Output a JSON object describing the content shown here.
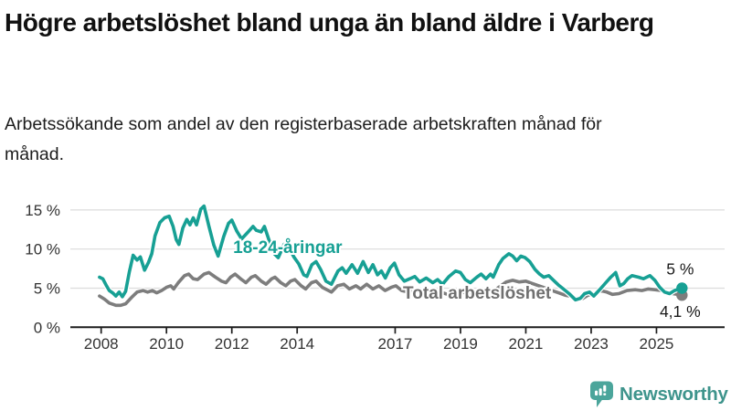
{
  "chart_data": {
    "type": "line",
    "title": "Högre arbetslöshet bland unga än bland äldre i Varberg",
    "subtitle": "Arbetssökande som andel av den registerbaserade arbetskraften månad för månad.",
    "x_axis": {
      "range": [
        2007.9,
        2026.0
      ],
      "ticks": [
        {
          "value": 2008,
          "label": "2008"
        },
        {
          "value": 2010,
          "label": "2010"
        },
        {
          "value": 2012,
          "label": "2012"
        },
        {
          "value": 2014,
          "label": "2014"
        },
        {
          "value": 2017,
          "label": "2017"
        },
        {
          "value": 2019,
          "label": "2019"
        },
        {
          "value": 2021,
          "label": "2021"
        },
        {
          "value": 2023,
          "label": "2023"
        },
        {
          "value": 2025,
          "label": "2025"
        }
      ]
    },
    "y_axis": {
      "range": [
        0,
        16.5
      ],
      "unit": "%",
      "ticks": [
        {
          "value": 15,
          "label": "15 %"
        },
        {
          "value": 10,
          "label": "10 %"
        },
        {
          "value": 5,
          "label": "5 %"
        },
        {
          "value": 0,
          "label": "0 %"
        }
      ]
    },
    "style": {
      "grid_color": "#dcdcdc",
      "axis_color": "#1d1d1d",
      "axis_text_color": "#333333",
      "grid_on": true
    },
    "series": [
      {
        "name": "Total arbetslöshet",
        "color": "#7d7d7d",
        "label_color": "#6f6f6f",
        "label_at": [
          2017.24,
          3.65
        ],
        "end_label": "4,1 %",
        "end_label_position": "below",
        "points": [
          [
            2007.95,
            4.0
          ],
          [
            2008.1,
            3.6
          ],
          [
            2008.25,
            3.1
          ],
          [
            2008.45,
            2.8
          ],
          [
            2008.6,
            2.8
          ],
          [
            2008.75,
            3.0
          ],
          [
            2008.95,
            3.9
          ],
          [
            2009.1,
            4.5
          ],
          [
            2009.28,
            4.7
          ],
          [
            2009.42,
            4.5
          ],
          [
            2009.57,
            4.7
          ],
          [
            2009.7,
            4.4
          ],
          [
            2009.85,
            4.7
          ],
          [
            2010.0,
            5.1
          ],
          [
            2010.13,
            5.3
          ],
          [
            2010.22,
            4.9
          ],
          [
            2010.36,
            5.7
          ],
          [
            2010.55,
            6.6
          ],
          [
            2010.68,
            6.8
          ],
          [
            2010.82,
            6.2
          ],
          [
            2010.95,
            6.1
          ],
          [
            2011.15,
            6.8
          ],
          [
            2011.3,
            7.0
          ],
          [
            2011.5,
            6.4
          ],
          [
            2011.68,
            5.9
          ],
          [
            2011.82,
            5.7
          ],
          [
            2011.96,
            6.4
          ],
          [
            2012.1,
            6.8
          ],
          [
            2012.3,
            6.1
          ],
          [
            2012.43,
            5.7
          ],
          [
            2012.6,
            6.4
          ],
          [
            2012.72,
            6.6
          ],
          [
            2012.9,
            5.9
          ],
          [
            2013.05,
            5.5
          ],
          [
            2013.22,
            6.2
          ],
          [
            2013.32,
            6.4
          ],
          [
            2013.5,
            5.7
          ],
          [
            2013.65,
            5.3
          ],
          [
            2013.8,
            5.9
          ],
          [
            2013.93,
            6.1
          ],
          [
            2014.12,
            5.3
          ],
          [
            2014.26,
            4.9
          ],
          [
            2014.44,
            5.7
          ],
          [
            2014.58,
            5.9
          ],
          [
            2014.77,
            5.1
          ],
          [
            2014.96,
            4.7
          ],
          [
            2015.05,
            4.5
          ],
          [
            2015.24,
            5.3
          ],
          [
            2015.43,
            5.5
          ],
          [
            2015.6,
            4.9
          ],
          [
            2015.8,
            5.3
          ],
          [
            2015.94,
            4.9
          ],
          [
            2016.13,
            5.5
          ],
          [
            2016.32,
            4.9
          ],
          [
            2016.5,
            5.3
          ],
          [
            2016.69,
            4.7
          ],
          [
            2016.88,
            5.1
          ],
          [
            2017.02,
            5.3
          ],
          [
            2017.2,
            4.7
          ],
          [
            2017.4,
            4.5
          ],
          [
            2017.6,
            4.8
          ],
          [
            2017.8,
            4.4
          ],
          [
            2018.0,
            4.6
          ],
          [
            2018.2,
            4.3
          ],
          [
            2018.4,
            4.5
          ],
          [
            2018.6,
            4.2
          ],
          [
            2018.8,
            4.5
          ],
          [
            2019.0,
            4.6
          ],
          [
            2019.2,
            4.3
          ],
          [
            2019.4,
            4.5
          ],
          [
            2019.6,
            4.7
          ],
          [
            2019.8,
            4.4
          ],
          [
            2020.0,
            4.6
          ],
          [
            2020.2,
            5.2
          ],
          [
            2020.4,
            5.8
          ],
          [
            2020.6,
            6.0
          ],
          [
            2020.8,
            5.8
          ],
          [
            2021.0,
            5.9
          ],
          [
            2021.2,
            5.6
          ],
          [
            2021.4,
            5.3
          ],
          [
            2021.6,
            5.0
          ],
          [
            2021.8,
            4.7
          ],
          [
            2022.0,
            4.4
          ],
          [
            2022.2,
            4.1
          ],
          [
            2022.45,
            3.9
          ],
          [
            2022.6,
            3.5
          ],
          [
            2022.75,
            3.7
          ],
          [
            2022.9,
            4.1
          ],
          [
            2023.1,
            4.3
          ],
          [
            2023.28,
            4.7
          ],
          [
            2023.48,
            4.5
          ],
          [
            2023.65,
            4.2
          ],
          [
            2023.85,
            4.3
          ],
          [
            2024.1,
            4.7
          ],
          [
            2024.35,
            4.8
          ],
          [
            2024.55,
            4.7
          ],
          [
            2024.75,
            4.9
          ],
          [
            2024.95,
            4.8
          ],
          [
            2025.15,
            4.7
          ],
          [
            2025.33,
            4.4
          ],
          [
            2025.5,
            4.3
          ],
          [
            2025.65,
            4.2
          ],
          [
            2025.78,
            4.1
          ]
        ]
      },
      {
        "name": "18-24-åringar",
        "color": "#17a094",
        "label_color": "#17a094",
        "label_at": [
          2012.04,
          9.5
        ],
        "end_label": "5 %",
        "end_label_position": "above",
        "points": [
          [
            2007.95,
            6.4
          ],
          [
            2008.05,
            6.2
          ],
          [
            2008.15,
            5.4
          ],
          [
            2008.25,
            4.7
          ],
          [
            2008.35,
            4.4
          ],
          [
            2008.45,
            4.0
          ],
          [
            2008.55,
            4.5
          ],
          [
            2008.65,
            3.9
          ],
          [
            2008.75,
            4.6
          ],
          [
            2008.86,
            7.0
          ],
          [
            2008.98,
            9.2
          ],
          [
            2009.1,
            8.6
          ],
          [
            2009.2,
            9.0
          ],
          [
            2009.33,
            7.3
          ],
          [
            2009.45,
            8.3
          ],
          [
            2009.55,
            9.4
          ],
          [
            2009.65,
            11.7
          ],
          [
            2009.8,
            13.4
          ],
          [
            2009.94,
            14.0
          ],
          [
            2010.08,
            14.2
          ],
          [
            2010.2,
            12.9
          ],
          [
            2010.3,
            11.2
          ],
          [
            2010.38,
            10.6
          ],
          [
            2010.5,
            12.7
          ],
          [
            2010.62,
            13.8
          ],
          [
            2010.72,
            13.1
          ],
          [
            2010.82,
            14.0
          ],
          [
            2010.92,
            13.1
          ],
          [
            2011.05,
            15.1
          ],
          [
            2011.15,
            15.5
          ],
          [
            2011.3,
            12.9
          ],
          [
            2011.45,
            10.5
          ],
          [
            2011.58,
            9.1
          ],
          [
            2011.75,
            11.6
          ],
          [
            2011.9,
            13.3
          ],
          [
            2012.0,
            13.7
          ],
          [
            2012.15,
            12.3
          ],
          [
            2012.3,
            11.3
          ],
          [
            2012.5,
            12.2
          ],
          [
            2012.65,
            12.9
          ],
          [
            2012.75,
            12.4
          ],
          [
            2012.9,
            12.2
          ],
          [
            2013.0,
            12.9
          ],
          [
            2013.15,
            11.0
          ],
          [
            2013.3,
            9.4
          ],
          [
            2013.42,
            8.9
          ],
          [
            2013.6,
            10.6
          ],
          [
            2013.75,
            10.2
          ],
          [
            2013.9,
            9.0
          ],
          [
            2014.05,
            8.1
          ],
          [
            2014.2,
            6.7
          ],
          [
            2014.3,
            6.5
          ],
          [
            2014.45,
            8.0
          ],
          [
            2014.58,
            8.4
          ],
          [
            2014.72,
            7.4
          ],
          [
            2014.88,
            5.9
          ],
          [
            2015.05,
            5.5
          ],
          [
            2015.25,
            7.2
          ],
          [
            2015.38,
            7.6
          ],
          [
            2015.5,
            6.9
          ],
          [
            2015.68,
            8.0
          ],
          [
            2015.85,
            6.9
          ],
          [
            2016.02,
            8.4
          ],
          [
            2016.18,
            7.0
          ],
          [
            2016.32,
            8.0
          ],
          [
            2016.46,
            6.7
          ],
          [
            2016.58,
            7.2
          ],
          [
            2016.7,
            6.3
          ],
          [
            2016.85,
            7.6
          ],
          [
            2016.98,
            8.2
          ],
          [
            2017.12,
            6.7
          ],
          [
            2017.28,
            5.9
          ],
          [
            2017.45,
            6.2
          ],
          [
            2017.6,
            6.5
          ],
          [
            2017.75,
            5.8
          ],
          [
            2017.95,
            6.3
          ],
          [
            2018.15,
            5.7
          ],
          [
            2018.3,
            6.1
          ],
          [
            2018.45,
            5.5
          ],
          [
            2018.65,
            6.5
          ],
          [
            2018.85,
            7.2
          ],
          [
            2019.0,
            7.0
          ],
          [
            2019.15,
            6.1
          ],
          [
            2019.3,
            5.7
          ],
          [
            2019.5,
            6.4
          ],
          [
            2019.63,
            6.8
          ],
          [
            2019.78,
            6.2
          ],
          [
            2019.92,
            6.8
          ],
          [
            2020.0,
            6.4
          ],
          [
            2020.17,
            8.0
          ],
          [
            2020.3,
            8.8
          ],
          [
            2020.48,
            9.4
          ],
          [
            2020.6,
            9.1
          ],
          [
            2020.72,
            8.5
          ],
          [
            2020.85,
            9.1
          ],
          [
            2020.98,
            8.9
          ],
          [
            2021.12,
            8.4
          ],
          [
            2021.28,
            7.4
          ],
          [
            2021.42,
            6.8
          ],
          [
            2021.55,
            6.4
          ],
          [
            2021.7,
            6.6
          ],
          [
            2021.85,
            6.0
          ],
          [
            2022.0,
            5.4
          ],
          [
            2022.15,
            4.9
          ],
          [
            2022.35,
            4.2
          ],
          [
            2022.52,
            3.5
          ],
          [
            2022.67,
            3.7
          ],
          [
            2022.8,
            4.3
          ],
          [
            2022.95,
            4.5
          ],
          [
            2023.08,
            4.0
          ],
          [
            2023.28,
            4.9
          ],
          [
            2023.45,
            5.7
          ],
          [
            2023.6,
            6.4
          ],
          [
            2023.75,
            7.0
          ],
          [
            2023.88,
            5.3
          ],
          [
            2024.0,
            5.6
          ],
          [
            2024.12,
            6.2
          ],
          [
            2024.25,
            6.6
          ],
          [
            2024.45,
            6.4
          ],
          [
            2024.6,
            6.2
          ],
          [
            2024.8,
            6.6
          ],
          [
            2024.95,
            6.0
          ],
          [
            2025.1,
            5.1
          ],
          [
            2025.25,
            4.5
          ],
          [
            2025.4,
            4.3
          ],
          [
            2025.55,
            4.7
          ],
          [
            2025.7,
            4.9
          ],
          [
            2025.78,
            5.0
          ]
        ]
      }
    ]
  },
  "footer": {
    "brand": "Newsworthy",
    "logo_color": "#4ba59b",
    "text_color": "#3e948c"
  }
}
